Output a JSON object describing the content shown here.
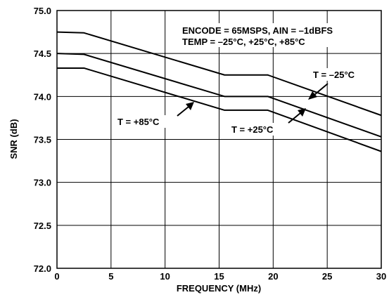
{
  "chart_data": {
    "type": "line",
    "title": "",
    "xlabel": "FREQUENCY (MHz)",
    "ylabel": "SNR (dB)",
    "xlim": [
      0,
      30
    ],
    "ylim": [
      72.0,
      75.0
    ],
    "x_ticks": [
      "0",
      "5",
      "10",
      "15",
      "20",
      "25",
      "30"
    ],
    "y_ticks": [
      "72.0",
      "72.5",
      "73.0",
      "73.5",
      "74.0",
      "74.5",
      "75.0"
    ],
    "grid": true,
    "legend": "none",
    "series": [
      {
        "name": "T = –25°C",
        "x": [
          0,
          2.5,
          15.5,
          19.5,
          30
        ],
        "y": [
          74.75,
          74.74,
          74.25,
          74.25,
          73.78
        ]
      },
      {
        "name": "T = +25°C",
        "x": [
          0,
          2.5,
          15.5,
          19.5,
          30
        ],
        "y": [
          74.5,
          74.49,
          74.0,
          74.0,
          73.53
        ]
      },
      {
        "name": "T = +85°C",
        "x": [
          0,
          2.5,
          15.5,
          19.5,
          30
        ],
        "y": [
          74.33,
          74.33,
          73.84,
          73.84,
          73.36
        ]
      }
    ],
    "annotations": {
      "conditions_line1": "ENCODE = 65MSPS, AIN = –1dBFS",
      "conditions_line2": "TEMP = –25°C, +25°C, +85°C",
      "label_m25": "T = –25°C",
      "label_p25": "T = +25°C",
      "label_p85": "T = +85°C"
    },
    "line_color": "#000000",
    "grid_color": "#000000"
  }
}
